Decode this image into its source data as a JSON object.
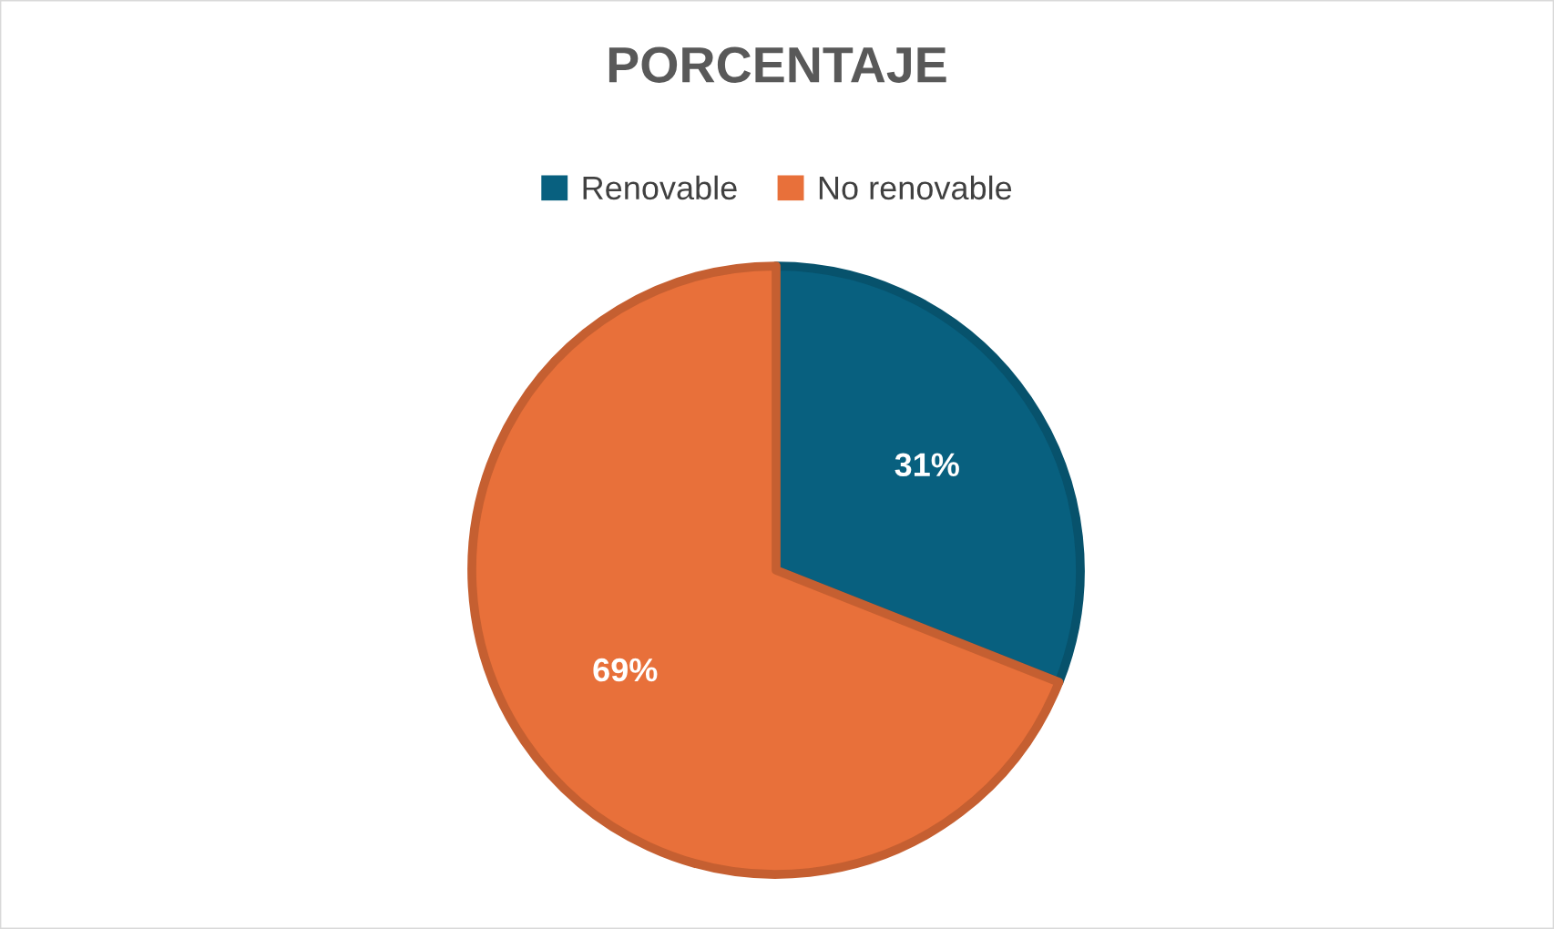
{
  "chart_data": {
    "type": "pie",
    "title": "PORCENTAJE",
    "categories": [
      "Renovable",
      "No renovable"
    ],
    "values": [
      31,
      69
    ],
    "colors": [
      "#08607f",
      "#e8703a"
    ],
    "value_labels": [
      "31%",
      "69%"
    ],
    "legend": "top"
  }
}
